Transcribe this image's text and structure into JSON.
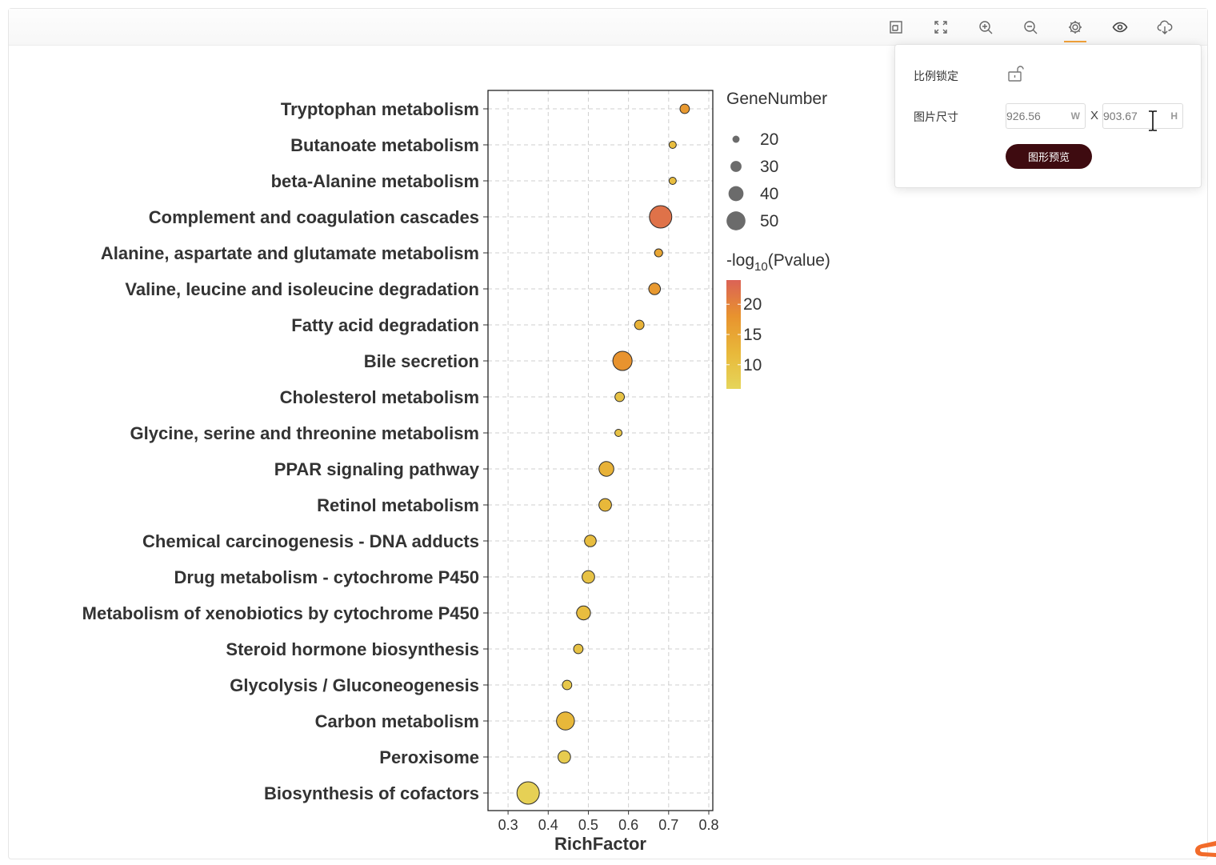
{
  "toolbar": {
    "icons": [
      "crop-frame-icon",
      "fullscreen-icon",
      "zoom-in-icon",
      "zoom-out-icon",
      "gear-icon",
      "eye-icon",
      "cloud-download-icon"
    ],
    "active": "gear-icon",
    "accent_color": "#f2a23a"
  },
  "settings_popover": {
    "ratio_lock_label": "比例锁定",
    "ratio_lock_icon": "unlock-icon",
    "image_size_label": "图片尺寸",
    "width_value": "926.56",
    "width_unit": "W",
    "times_label": "X",
    "height_value": "903.67",
    "height_unit": "H",
    "preview_button_label": "图形预览",
    "preview_button_color": "#3e0b10"
  },
  "chart_data": {
    "type": "scatter",
    "xlabel": "RichFactor",
    "xlim": [
      0.25,
      0.81
    ],
    "xticks": [
      "0.3",
      "0.4",
      "0.5",
      "0.6",
      "0.7",
      "0.8"
    ],
    "grid": true,
    "categories": [
      "Tryptophan metabolism",
      "Butanoate metabolism",
      "beta-Alanine metabolism",
      "Complement and coagulation cascades",
      "Alanine, aspartate and glutamate metabolism",
      "Valine, leucine and isoleucine degradation",
      "Fatty acid degradation",
      "Bile secretion",
      "Cholesterol metabolism",
      "Glycine, serine and threonine metabolism",
      "PPAR signaling pathway",
      "Retinol metabolism",
      "Chemical carcinogenesis - DNA adducts",
      "Drug metabolism - cytochrome P450",
      "Metabolism of xenobiotics by cytochrome P450",
      "Steroid hormone biosynthesis",
      "Glycolysis / Gluconeogenesis",
      "Carbon metabolism",
      "Peroxisome",
      "Biosynthesis of cofactors"
    ],
    "rich_factor": [
      0.74,
      0.71,
      0.71,
      0.68,
      0.675,
      0.665,
      0.627,
      0.585,
      0.578,
      0.575,
      0.545,
      0.542,
      0.505,
      0.5,
      0.488,
      0.475,
      0.447,
      0.443,
      0.44,
      0.35
    ],
    "gene_number": [
      23,
      18,
      18,
      52,
      20,
      28,
      23,
      45,
      23,
      18,
      35,
      30,
      28,
      30,
      33,
      23,
      23,
      42,
      30,
      52
    ],
    "neg_log10_pvalue": [
      17,
      11,
      11,
      22,
      15,
      17,
      13,
      18,
      10,
      10,
      13,
      12,
      11,
      10,
      11,
      10,
      9,
      12,
      8,
      7
    ],
    "size_legend": {
      "title": "GeneNumber",
      "values": [
        20,
        30,
        40,
        50
      ]
    },
    "color_legend": {
      "title_main": "-log",
      "title_sub": "10",
      "title_tail": "(Pvalue)",
      "ticks": [
        20,
        15,
        10
      ],
      "range": [
        6,
        24
      ],
      "colors": [
        "#e6d55a",
        "#e8b83a",
        "#e8932e",
        "#db6256"
      ]
    }
  }
}
